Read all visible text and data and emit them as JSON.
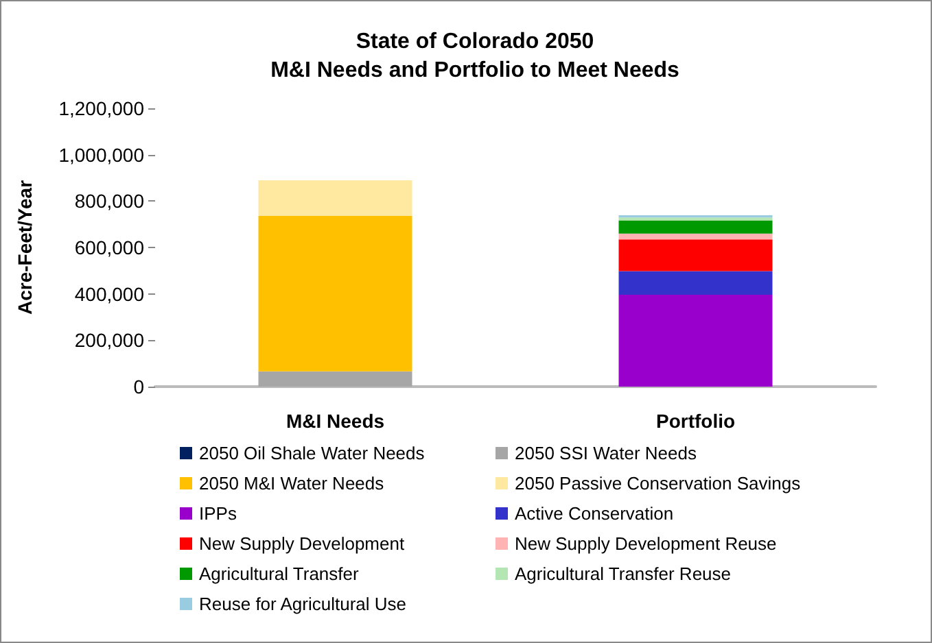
{
  "chart_data": {
    "type": "bar",
    "title": "State of Colorado 2050\nM&I Needs and Portfolio to Meet Needs",
    "ylabel": "Acre-Feet/Year",
    "categories": [
      "M&I Needs",
      "Portfolio"
    ],
    "stacked": true,
    "ylim": [
      0,
      1200000
    ],
    "yticks": [
      0,
      {
        "value": 200000,
        "label": "200,000"
      },
      {
        "value": 400000,
        "label": "400,000"
      },
      {
        "value": 600000,
        "label": "600,000"
      },
      {
        "value": 800000,
        "label": "800,000"
      },
      {
        "value": 1000000,
        "label": "1,000,000"
      },
      {
        "value": 1200000,
        "label": "1,200,000"
      }
    ],
    "grid": false,
    "legend": "bottom",
    "series": [
      {
        "name": "2050 Oil Shale Water Needs",
        "color": "#002060",
        "values": [
          0,
          0
        ]
      },
      {
        "name": "2050 SSI Water Needs",
        "color": "#a6a6a6",
        "values": [
          66000,
          0
        ]
      },
      {
        "name": "2050 M&I Water Needs",
        "color": "#ffc000",
        "values": [
          670000,
          0
        ]
      },
      {
        "name": "2050 Passive Conservation Savings",
        "color": "#ffe8a0",
        "values": [
          154000,
          0
        ]
      },
      {
        "name": "IPPs",
        "color": "#9900cc",
        "values": [
          0,
          396000
        ]
      },
      {
        "name": "Active Conservation",
        "color": "#3333cc",
        "values": [
          0,
          102000
        ]
      },
      {
        "name": "New Supply Development",
        "color": "#ff0000",
        "values": [
          0,
          137000
        ]
      },
      {
        "name": "New Supply Development Reuse",
        "color": "#ffb3b3",
        "values": [
          0,
          25000
        ]
      },
      {
        "name": "Agricultural Transfer",
        "color": "#009900",
        "values": [
          0,
          57000
        ]
      },
      {
        "name": "Agricultural Transfer Reuse",
        "color": "#b3e6b3",
        "values": [
          0,
          12000
        ]
      },
      {
        "name": "Reuse for Agricultural Use",
        "color": "#99cce0",
        "values": [
          0,
          10000
        ]
      }
    ]
  }
}
